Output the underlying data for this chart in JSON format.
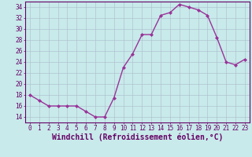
{
  "x": [
    0,
    1,
    2,
    3,
    4,
    5,
    6,
    7,
    8,
    9,
    10,
    11,
    12,
    13,
    14,
    15,
    16,
    17,
    18,
    19,
    20,
    21,
    22,
    23
  ],
  "y": [
    18,
    17,
    16,
    16,
    16,
    16,
    15,
    14,
    14,
    17.5,
    23,
    25.5,
    29,
    29,
    32.5,
    33,
    34.5,
    34,
    33.5,
    32.5,
    28.5,
    24,
    23.5,
    24.5
  ],
  "line_color": "#993399",
  "marker": "D",
  "marker_size": 2.0,
  "bg_color": "#c8eaea",
  "grid_color": "#aabbcc",
  "title": "Windchill (Refroidissement éolien,°C)",
  "ylim": [
    13,
    35
  ],
  "yticks": [
    14,
    16,
    18,
    20,
    22,
    24,
    26,
    28,
    30,
    32,
    34
  ],
  "xticks": [
    0,
    1,
    2,
    3,
    4,
    5,
    6,
    7,
    8,
    9,
    10,
    11,
    12,
    13,
    14,
    15,
    16,
    17,
    18,
    19,
    20,
    21,
    22,
    23
  ],
  "tick_fontsize": 5.5,
  "title_fontsize": 7.0,
  "title_color": "#660066",
  "tick_color": "#660066",
  "spine_color": "#660066",
  "line_width": 1.0
}
